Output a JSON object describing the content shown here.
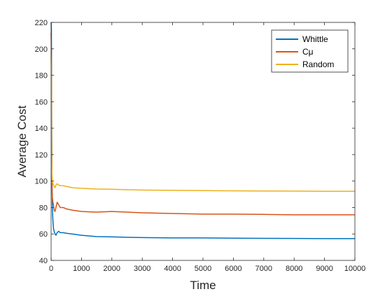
{
  "chart_data": {
    "type": "line",
    "title": "",
    "xlabel": "Time",
    "ylabel": "Average Cost",
    "xlim": [
      0,
      10000
    ],
    "ylim": [
      40,
      220
    ],
    "xticks": [
      0,
      1000,
      2000,
      3000,
      4000,
      5000,
      6000,
      7000,
      8000,
      9000,
      10000
    ],
    "yticks": [
      40,
      60,
      80,
      100,
      120,
      140,
      160,
      180,
      200,
      220
    ],
    "grid": false,
    "legend_position": "top-right",
    "series": [
      {
        "name": "Whittle",
        "color": "#0072BD",
        "x": [
          0,
          10,
          20,
          30,
          40,
          60,
          80,
          100,
          130,
          160,
          200,
          250,
          300,
          400,
          500,
          700,
          1000,
          1500,
          2000,
          2500,
          3000,
          4000,
          5000,
          6000,
          7000,
          8000,
          9000,
          10000
        ],
        "y": [
          220,
          215,
          150,
          100,
          80,
          70,
          64,
          62,
          60,
          59,
          61,
          62,
          61,
          61,
          60.5,
          60,
          59,
          58,
          57.8,
          57.5,
          57.3,
          57,
          57,
          56.8,
          56.7,
          56.6,
          56.5,
          56.5
        ]
      },
      {
        "name": "Cμ",
        "color": "#D95319",
        "x": [
          0,
          10,
          20,
          30,
          40,
          60,
          80,
          100,
          130,
          160,
          200,
          250,
          300,
          400,
          500,
          700,
          1000,
          1500,
          2000,
          2500,
          3000,
          4000,
          5000,
          6000,
          7000,
          8000,
          9000,
          10000
        ],
        "y": [
          212,
          200,
          120,
          95,
          88,
          84,
          82,
          78,
          77,
          80,
          84,
          82,
          80,
          80,
          79,
          78,
          77,
          76.5,
          77,
          76.5,
          76,
          75.5,
          75,
          75,
          74.8,
          74.5,
          74.5,
          74.5
        ]
      },
      {
        "name": "Random",
        "color": "#EDB120",
        "x": [
          0,
          10,
          20,
          30,
          40,
          60,
          80,
          100,
          130,
          160,
          200,
          250,
          300,
          400,
          500,
          700,
          1000,
          1500,
          2000,
          2500,
          3000,
          4000,
          5000,
          6000,
          7000,
          8000,
          9000,
          10000
        ],
        "y": [
          195,
          180,
          120,
          105,
          100,
          98,
          97,
          96,
          95,
          97,
          98,
          97,
          96.5,
          96.5,
          96,
          95,
          94.5,
          94,
          93.8,
          93.5,
          93.2,
          93,
          92.8,
          92.6,
          92.5,
          92.4,
          92.3,
          92.3
        ]
      }
    ]
  }
}
